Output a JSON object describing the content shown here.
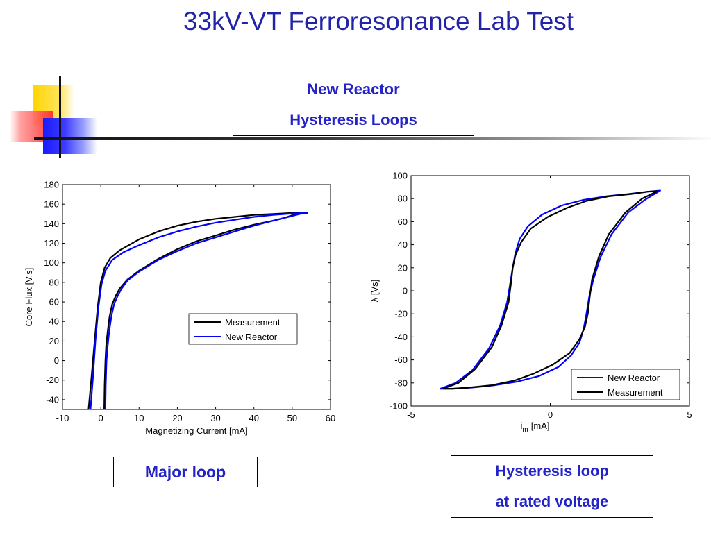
{
  "slide": {
    "title": "33kV-VT Ferroresonance Lab Test",
    "box_reactor": [
      "New Reactor",
      "Hysteresis Loops"
    ],
    "box_major": "Major loop",
    "box_rated": [
      "Hysteresis loop",
      "at rated voltage"
    ]
  },
  "chart_data": [
    {
      "type": "line",
      "title": "",
      "xlabel": "Magnetizing Current [mA]",
      "ylabel": "Core Flux [V.s]",
      "xlim": [
        -10,
        60
      ],
      "ylim": [
        -50,
        180
      ],
      "xticks": [
        -10,
        0,
        10,
        20,
        30,
        40,
        50,
        60
      ],
      "yticks": [
        -40,
        -20,
        0,
        20,
        40,
        60,
        80,
        100,
        120,
        140,
        160,
        180
      ],
      "legend_position": "center-right",
      "series": [
        {
          "name": "Measurement",
          "color": "#000000",
          "x": [
            -3.2,
            -2.5,
            -1.6,
            -0.8,
            0.0,
            1.0,
            2.5,
            5.0,
            10.0,
            15.0,
            20.0,
            25.0,
            30.0,
            35.0,
            40.0,
            45.0,
            50.0,
            52.0,
            51.0,
            48.0,
            45.0,
            40.0,
            35.0,
            30.0,
            25.0,
            20.0,
            15.0,
            10.0,
            7.0,
            5.0,
            4.0,
            3.0,
            2.3,
            1.8,
            1.4,
            1.2,
            1.0,
            0.9
          ],
          "y": [
            -50.0,
            -20.0,
            20.0,
            55.0,
            80.0,
            95.0,
            105.0,
            113.0,
            124.0,
            132.0,
            138.0,
            142.0,
            145.0,
            147.0,
            149.0,
            150.0,
            151.0,
            151.0,
            150.0,
            146.0,
            143.0,
            139.0,
            134.0,
            128.0,
            122.0,
            114.0,
            104.0,
            92.0,
            83.0,
            74.0,
            67.0,
            58.0,
            45.0,
            30.0,
            15.0,
            0.0,
            -25.0,
            -50.0
          ]
        },
        {
          "name": "New Reactor",
          "color": "#0000ff",
          "x": [
            -2.7,
            -2.1,
            -1.4,
            -0.6,
            0.2,
            1.2,
            3.0,
            6.0,
            10.0,
            15.0,
            20.0,
            25.0,
            30.0,
            35.0,
            40.0,
            45.0,
            50.0,
            54.0,
            52.0,
            49.0,
            45.0,
            40.0,
            35.0,
            30.0,
            25.0,
            20.0,
            15.0,
            10.0,
            7.0,
            5.5,
            4.5,
            3.5,
            2.8,
            2.2,
            1.8,
            1.5,
            1.3,
            1.2
          ],
          "y": [
            -50.0,
            -20.0,
            20.0,
            55.0,
            78.0,
            92.0,
            103.0,
            111.0,
            118.0,
            126.0,
            132.0,
            137.0,
            141.0,
            144.0,
            147.0,
            149.0,
            150.5,
            151.0,
            150.0,
            147.0,
            143.0,
            138.0,
            132.0,
            126.0,
            120.0,
            112.0,
            103.0,
            91.0,
            82.0,
            74.0,
            67.0,
            58.0,
            46.0,
            30.0,
            15.0,
            0.0,
            -25.0,
            -50.0
          ]
        }
      ]
    },
    {
      "type": "line",
      "title": "",
      "xlabel": "i",
      "xlabel_sub": "m",
      "xlabel_unit": "[mA]",
      "ylabel": "λ [Vs]",
      "xlim": [
        -5,
        5
      ],
      "ylim": [
        -100,
        100
      ],
      "xticks": [
        -5,
        0,
        5
      ],
      "yticks": [
        -100,
        -80,
        -60,
        -40,
        -20,
        0,
        20,
        40,
        60,
        80,
        100
      ],
      "legend_position": "bottom-right",
      "series": [
        {
          "name": "New Reactor",
          "color": "#0000ff",
          "x": [
            -3.95,
            -3.4,
            -2.8,
            -2.2,
            -1.8,
            -1.55,
            -1.45,
            -1.35,
            -1.25,
            -1.1,
            -0.8,
            -0.3,
            0.4,
            1.2,
            2.0,
            2.8,
            3.5,
            3.95,
            3.4,
            2.8,
            2.2,
            1.8,
            1.55,
            1.4,
            1.3,
            1.2,
            1.05,
            0.75,
            0.3,
            -0.4,
            -1.2,
            -2.0,
            -2.8,
            -3.5,
            -3.95
          ],
          "y": [
            -85.0,
            -80.0,
            -69.0,
            -50.0,
            -30.0,
            -10.0,
            5.0,
            20.0,
            33.0,
            45.0,
            56.0,
            66.0,
            74.0,
            79.0,
            82.0,
            84.0,
            86.0,
            87.0,
            79.0,
            68.0,
            49.0,
            29.0,
            10.0,
            -5.0,
            -20.0,
            -33.0,
            -45.0,
            -56.0,
            -66.0,
            -74.0,
            -79.0,
            -82.0,
            -84.0,
            -85.0,
            -85.0
          ]
        },
        {
          "name": "Measurement",
          "color": "#000000",
          "x": [
            -3.85,
            -3.3,
            -2.7,
            -2.1,
            -1.75,
            -1.5,
            -1.42,
            -1.35,
            -1.25,
            -1.05,
            -0.7,
            -0.1,
            0.6,
            1.3,
            2.1,
            2.9,
            3.5,
            3.85,
            3.3,
            2.7,
            2.1,
            1.75,
            1.5,
            1.42,
            1.35,
            1.25,
            1.05,
            0.7,
            0.1,
            -0.6,
            -1.3,
            -2.1,
            -2.9,
            -3.5,
            -3.85
          ],
          "y": [
            -85.0,
            -80.0,
            -68.0,
            -49.0,
            -30.0,
            -10.0,
            5.0,
            20.0,
            31.0,
            42.0,
            54.0,
            64.0,
            72.0,
            78.0,
            82.0,
            84.0,
            86.0,
            86.5,
            80.0,
            68.0,
            49.0,
            30.0,
            10.0,
            -5.0,
            -20.0,
            -31.0,
            -42.0,
            -54.0,
            -64.0,
            -72.0,
            -78.0,
            -82.0,
            -84.0,
            -85.0,
            -85.0
          ]
        }
      ]
    }
  ]
}
